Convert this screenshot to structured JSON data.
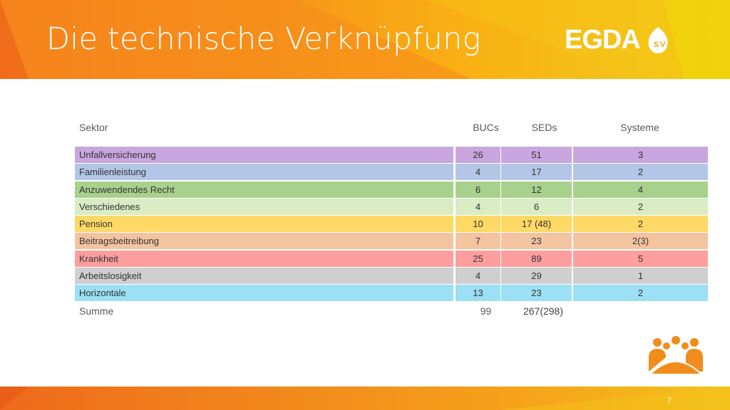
{
  "header": {
    "title": "Die technische Verknüpfung",
    "logo_text": "EGDA",
    "logo_mark_letters": "SV"
  },
  "table": {
    "columns": [
      "Sektor",
      "BUCs",
      "SEDs",
      "Systeme"
    ],
    "rows": [
      {
        "sektor": "Unfallversicherung",
        "bucs": "26",
        "seds": "51",
        "systeme": "3",
        "color": "#c9a6e0"
      },
      {
        "sektor": "Familienleistung",
        "bucs": "4",
        "seds": "17",
        "systeme": "2",
        "color": "#b3c6e7"
      },
      {
        "sektor": "Anzuwendendes Recht",
        "bucs": "6",
        "seds": "12",
        "systeme": "4",
        "color": "#a9d18e"
      },
      {
        "sektor": "Verschiedenes",
        "bucs": "4",
        "seds": "6",
        "systeme": "2",
        "color": "#d9ecc4"
      },
      {
        "sektor": "Pension",
        "bucs": "10",
        "seds": "17 (48)",
        "systeme": "2",
        "color": "#ffd966"
      },
      {
        "sektor": "Beitragsbeitreibung",
        "bucs": "7",
        "seds": "23",
        "systeme": "2(3)",
        "color": "#f4c4a1"
      },
      {
        "sektor": "Krankheit",
        "bucs": "25",
        "seds": "89",
        "systeme": "5",
        "color": "#ff9e9e"
      },
      {
        "sektor": "Arbeitslosigkeit",
        "bucs": "4",
        "seds": "29",
        "systeme": "1",
        "color": "#cfcfcf"
      },
      {
        "sektor": "Horizontale",
        "bucs": "13",
        "seds": "23",
        "systeme": "2",
        "color": "#9be0f5"
      }
    ],
    "summary": {
      "label": "Summe",
      "bucs": "99",
      "seds": "267(298)"
    }
  },
  "footer": {
    "page_number": "7"
  },
  "colors": {
    "header_orange": "#f47c1e",
    "header_yellow": "#f9b114",
    "white": "#ffffff",
    "people_icon": "#f28c1c"
  }
}
